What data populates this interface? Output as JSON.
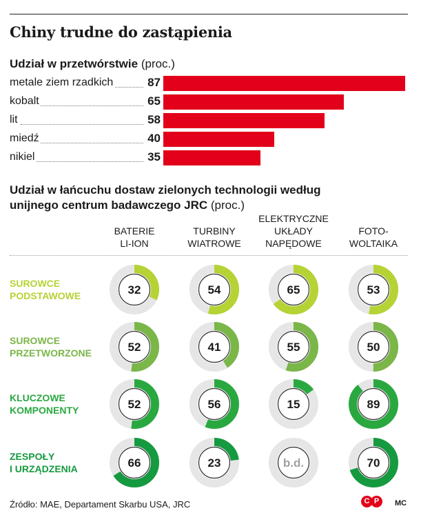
{
  "title": "Chiny trudne do zastąpienia",
  "section1": {
    "heading": "Udział w przetwórstwie",
    "unit": "(proc.)"
  },
  "section2": {
    "heading_line1": "Udział w łańcuchu dostaw zielonych technologii według",
    "heading_line2": "unijnego centrum badawczego JRC",
    "unit": "(proc.)"
  },
  "colors": {
    "bar": "#e2001a",
    "track": "#e6e6e6",
    "rows": [
      "#b5d334",
      "#7ab648",
      "#2aa840",
      "#159a3f"
    ]
  },
  "chart_data": [
    {
      "type": "bar",
      "orientation": "horizontal",
      "categories": [
        "metale ziem rzadkich",
        "kobalt",
        "lit",
        "miedź",
        "nikiel"
      ],
      "values": [
        87,
        65,
        58,
        40,
        35
      ],
      "value_labels": [
        "87",
        "65",
        "58",
        "40",
        "35"
      ],
      "xlim": [
        0,
        87
      ]
    },
    {
      "type": "donut-grid",
      "columns": [
        [
          "BATERIE",
          "LI-ION"
        ],
        [
          "TURBINY",
          "WIATROWE"
        ],
        [
          "ELEKTRYCZNE",
          "UKŁADY",
          "NAPĘDOWE"
        ],
        [
          "FOTO-",
          "WOLTAIKA"
        ]
      ],
      "rows": [
        {
          "label": [
            "SUROWCE",
            "PODSTAWOWE"
          ],
          "values": [
            32,
            54,
            65,
            53
          ],
          "labels": [
            "32",
            "54",
            "65",
            "53"
          ]
        },
        {
          "label": [
            "SUROWCE",
            "PRZETWORZONE"
          ],
          "values": [
            52,
            41,
            55,
            50
          ],
          "labels": [
            "52",
            "41",
            "55",
            "50"
          ]
        },
        {
          "label": [
            "KLUCZOWE",
            "KOMPONENTY"
          ],
          "values": [
            52,
            56,
            15,
            89
          ],
          "labels": [
            "52",
            "56",
            "15",
            "89"
          ]
        },
        {
          "label": [
            "ZESPOŁY",
            "I URZĄDZENIA"
          ],
          "values": [
            66,
            23,
            null,
            70
          ],
          "labels": [
            "66",
            "23",
            "b.d.",
            "70"
          ]
        }
      ]
    }
  ],
  "footer": {
    "source": "Źródło: MAE, Departament Skarbu USA, JRC",
    "logo1": "C",
    "logo2": "P",
    "credit": "MC"
  }
}
